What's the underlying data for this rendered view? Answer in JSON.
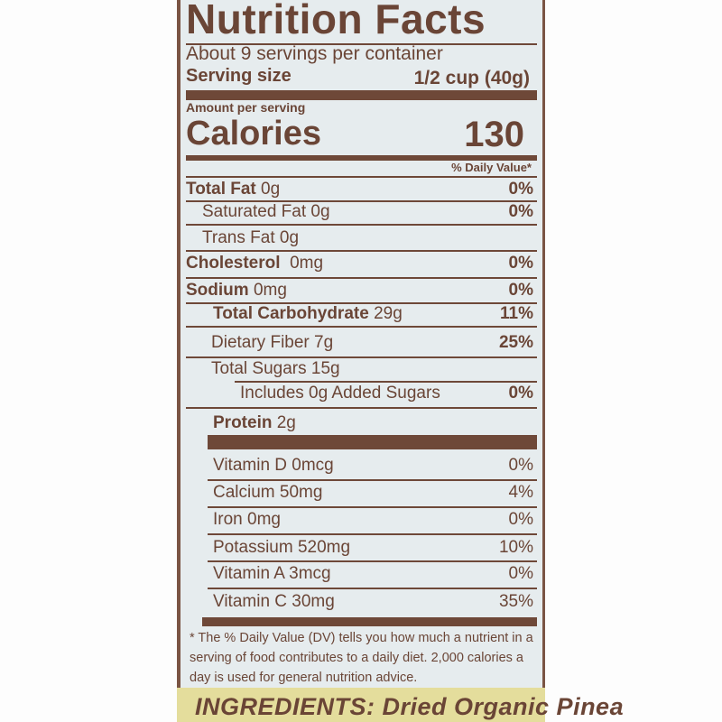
{
  "title": "Nutrition Facts",
  "servings_per_container": "About 9 servings per container",
  "serving_size_label": "Serving size",
  "serving_size_value": "1/2 cup (40g)",
  "amount_per_serving": "Amount per serving",
  "calories_label": "Calories",
  "calories_value": "130",
  "daily_value_header": "% Daily Value*",
  "nutrients": [
    {
      "name": "Total Fat",
      "amount": "0g",
      "dv": "0%"
    },
    {
      "name": "Saturated Fat 0g",
      "amount": "",
      "dv": "0%"
    },
    {
      "name": "Trans Fat 0g",
      "amount": "",
      "dv": ""
    },
    {
      "name": "Cholesterol",
      "amount": "0mg",
      "dv": "0%"
    },
    {
      "name": "Sodium",
      "amount": "0mg",
      "dv": "0%"
    },
    {
      "name": "Total Carbohydrate",
      "amount": "29g",
      "dv": "11%"
    },
    {
      "name": "Dietary Fiber 7g",
      "amount": "",
      "dv": "25%"
    },
    {
      "name": "Total Sugars 15g",
      "amount": "",
      "dv": ""
    },
    {
      "name": "Includes 0g Added Sugars",
      "amount": "",
      "dv": "0%"
    },
    {
      "name": "Protein",
      "amount": "2g",
      "dv": ""
    }
  ],
  "vitamins": [
    {
      "name": "Vitamin D 0mcg",
      "dv": "0%"
    },
    {
      "name": "Calcium 50mg",
      "dv": "4%"
    },
    {
      "name": "Iron 0mg",
      "dv": "0%"
    },
    {
      "name": "Potassium 520mg",
      "dv": "10%"
    },
    {
      "name": "Vitamin A 3mcg",
      "dv": "0%"
    },
    {
      "name": "Vitamin C 30mg",
      "dv": "35%"
    }
  ],
  "footnote": "* The % Daily Value (DV) tells you how much a nutrient in a serving of food contributes to a daily diet. 2,000 calories a day is used for general nutrition advice.",
  "ingredients": "INGREDIENTS: Dried Organic Pinea",
  "colors": {
    "ink": "#6a4536",
    "label_bg": "#e6ecee",
    "ingredients_bg": "#e4dd9c"
  }
}
